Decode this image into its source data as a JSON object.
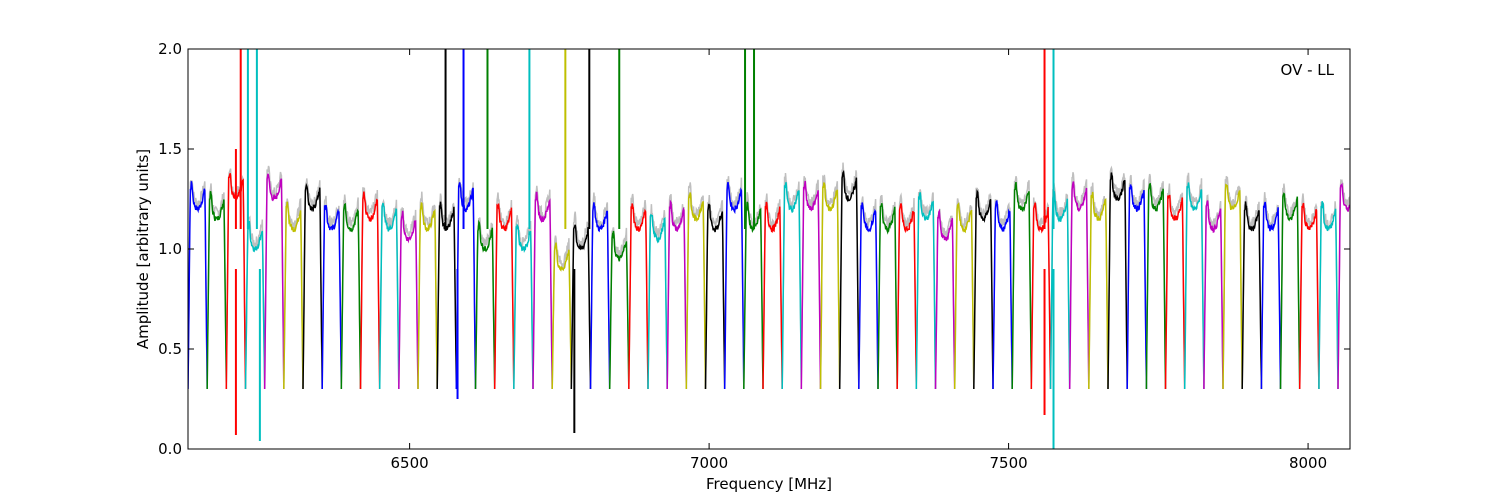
{
  "chart_data": {
    "type": "line",
    "title": "",
    "annotation": "OV - LL",
    "xlabel": "Frequency [MHz]",
    "ylabel": "Amplitude [arbitrary units]",
    "xlim": [
      6130,
      8070
    ],
    "ylim": [
      0.0,
      2.0
    ],
    "x_ticks": [
      6500,
      7000,
      7500,
      8000
    ],
    "y_ticks": [
      0.0,
      0.5,
      1.0,
      1.5,
      2.0
    ],
    "x_tick_labels": [
      "6500",
      "7000",
      "7500",
      "8000"
    ],
    "y_tick_labels": [
      "0.0",
      "0.5",
      "1.0",
      "1.5",
      "2.0"
    ],
    "grid": false,
    "legend": "none",
    "band_width_mhz": 32,
    "first_band_start_mhz": 6130,
    "band_colors": [
      "#0000ff",
      "#008000",
      "#ff0000",
      "#00bfbf",
      "#bf00bf",
      "#bfbf00",
      "#000000"
    ],
    "raw_color": "#bfbfbf",
    "band_levels": [
      1.3,
      1.25,
      1.35,
      1.1,
      1.35,
      1.2,
      1.3,
      1.2,
      1.2,
      1.25,
      1.2,
      1.15,
      1.2,
      1.2,
      1.3,
      1.1,
      1.2,
      1.1,
      1.25,
      1.0,
      1.1,
      1.2,
      1.05,
      1.2,
      1.15,
      1.2,
      1.25,
      1.2,
      1.3,
      1.2,
      1.2,
      1.3,
      1.3,
      1.3,
      1.35,
      1.2,
      1.2,
      1.2,
      1.25,
      1.15,
      1.2,
      1.25,
      1.2,
      1.3,
      1.2,
      1.25,
      1.3,
      1.25,
      1.35,
      1.3,
      1.3,
      1.25,
      1.3,
      1.2,
      1.3,
      1.2,
      1.2,
      1.25,
      1.2,
      1.2,
      1.3,
      1.5,
      1.3,
      1.35
    ],
    "spikes": [
      {
        "x": 6210,
        "y": 1.5
      },
      {
        "x": 6218,
        "y": 2.0
      },
      {
        "x": 6230,
        "y": 2.0
      },
      {
        "x": 6245,
        "y": 2.0
      },
      {
        "x": 6560,
        "y": 2.0
      },
      {
        "x": 6590,
        "y": 2.0
      },
      {
        "x": 6630,
        "y": 2.0
      },
      {
        "x": 6700,
        "y": 2.0
      },
      {
        "x": 6760,
        "y": 2.0
      },
      {
        "x": 6800,
        "y": 2.0
      },
      {
        "x": 6850,
        "y": 2.0
      },
      {
        "x": 7060,
        "y": 2.0
      },
      {
        "x": 7075,
        "y": 2.0
      },
      {
        "x": 7560,
        "y": 2.0
      },
      {
        "x": 7575,
        "y": 2.0
      }
    ],
    "dips": [
      {
        "x": 6210,
        "y": 0.07
      },
      {
        "x": 6250,
        "y": 0.04
      },
      {
        "x": 6580,
        "y": 0.25
      },
      {
        "x": 6775,
        "y": 0.08
      },
      {
        "x": 7560,
        "y": 0.17
      },
      {
        "x": 7575,
        "y": 0.0
      }
    ]
  }
}
